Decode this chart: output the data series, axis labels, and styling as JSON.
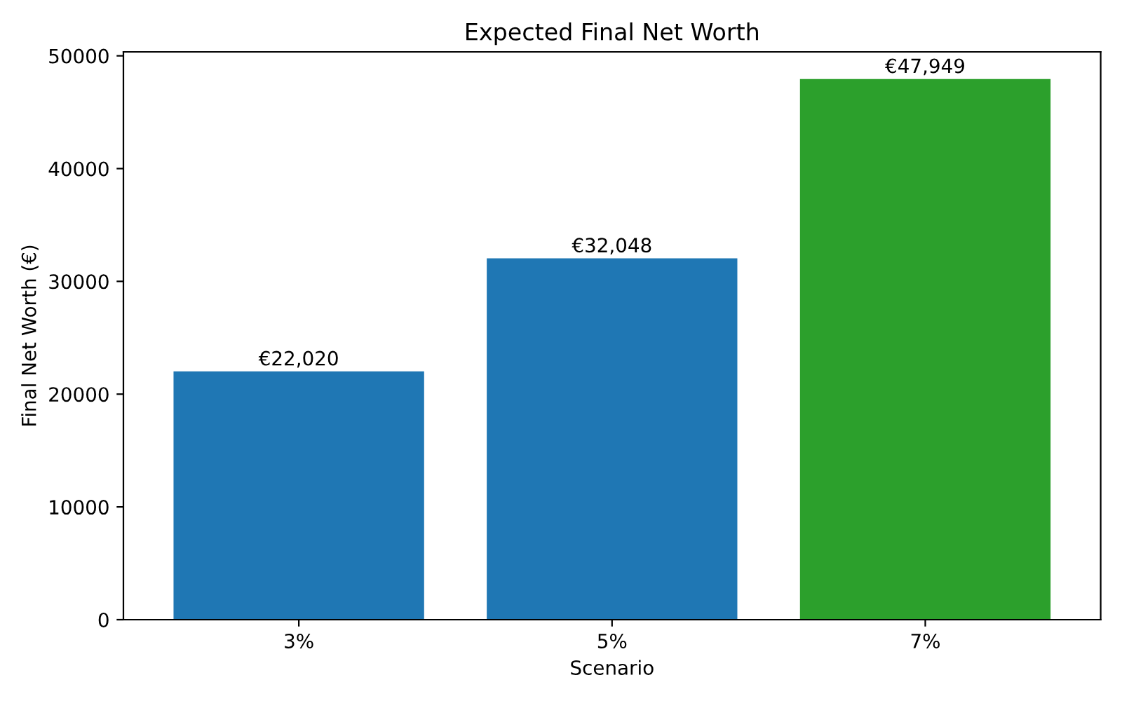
{
  "chart_data": {
    "type": "bar",
    "title": "Expected Final Net Worth",
    "xlabel": "Scenario",
    "ylabel": "Final Net Worth (€)",
    "categories": [
      "3%",
      "5%",
      "7%"
    ],
    "values": [
      22020,
      32048,
      47949
    ],
    "colors": [
      "#1f77b4",
      "#1f77b4",
      "#2ca02c"
    ],
    "value_labels": [
      "€22,020",
      "€32,048",
      "€47,949"
    ],
    "ylim": [
      0,
      50350
    ],
    "yticks": [
      0,
      10000,
      20000,
      30000,
      40000,
      50000
    ],
    "grid": false
  }
}
